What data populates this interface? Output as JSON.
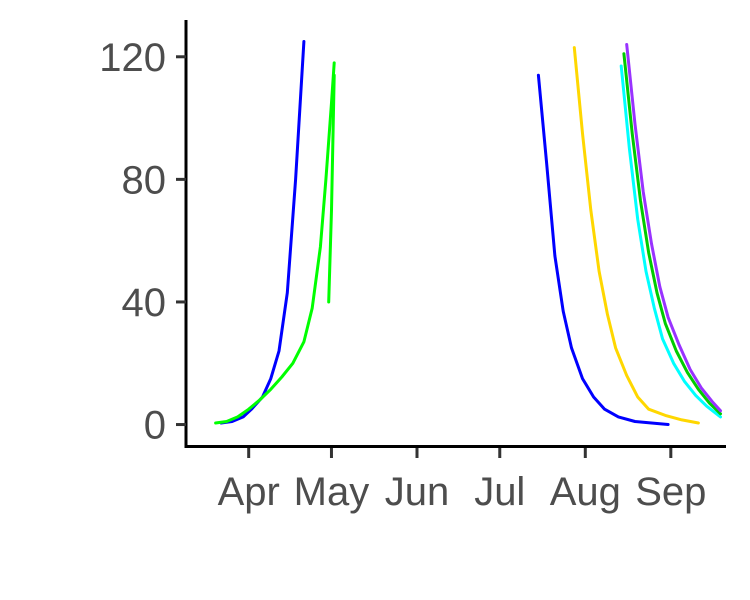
{
  "chart_data": {
    "type": "line",
    "title": "",
    "xlabel": "",
    "ylabel": "",
    "x_unit": "day of year",
    "xlim": [
      69,
      264
    ],
    "ylim": [
      -7,
      132
    ],
    "grid": false,
    "legend": "none",
    "x_ticks": [
      {
        "day": 91,
        "label": "Apr"
      },
      {
        "day": 121,
        "label": "May"
      },
      {
        "day": 152,
        "label": "Jun"
      },
      {
        "day": 182,
        "label": "Jul"
      },
      {
        "day": 213,
        "label": "Aug"
      },
      {
        "day": 244,
        "label": "Sep"
      }
    ],
    "y_ticks": [
      0,
      40,
      80,
      120
    ],
    "series": [
      {
        "color": "#0000ff",
        "points": [
          [
            81,
            0.5
          ],
          [
            85,
            1.0
          ],
          [
            89,
            2.5
          ],
          [
            92,
            5.0
          ],
          [
            96,
            9.0
          ],
          [
            99,
            15.0
          ],
          [
            102,
            24.0
          ],
          [
            105,
            43.0
          ],
          [
            108,
            80.0
          ],
          [
            111,
            125.0
          ]
        ]
      },
      {
        "color": "#00ff00",
        "points": [
          [
            79,
            0.5
          ],
          [
            83,
            1.0
          ],
          [
            87,
            2.5
          ],
          [
            91,
            5.0
          ],
          [
            95,
            8.0
          ],
          [
            99,
            11.5
          ],
          [
            103,
            15.5
          ],
          [
            107,
            20.0
          ],
          [
            111,
            27.0
          ],
          [
            114,
            38.0
          ],
          [
            117,
            58.0
          ],
          [
            119,
            80.0
          ],
          [
            121,
            105.0
          ],
          [
            122,
            118.0
          ]
        ]
      },
      {
        "color": "#00ff00",
        "points": [
          [
            120,
            40.0
          ],
          [
            121,
            70.0
          ],
          [
            122,
            114.0
          ]
        ]
      },
      {
        "color": "#0000ff",
        "points": [
          [
            196,
            114.0
          ],
          [
            199,
            85.0
          ],
          [
            202,
            55.0
          ],
          [
            205,
            37.0
          ],
          [
            208,
            25.0
          ],
          [
            212,
            15.0
          ],
          [
            216,
            9.0
          ],
          [
            220,
            5.0
          ],
          [
            225,
            2.5
          ],
          [
            231,
            1.0
          ],
          [
            237,
            0.5
          ],
          [
            243,
            0.0
          ]
        ]
      },
      {
        "color": "#ffd700",
        "points": [
          [
            209,
            123.0
          ],
          [
            212,
            95.0
          ],
          [
            215,
            70.0
          ],
          [
            218,
            50.0
          ],
          [
            221,
            36.0
          ],
          [
            224,
            25.0
          ],
          [
            228,
            16.0
          ],
          [
            232,
            9.0
          ],
          [
            236,
            5.0
          ],
          [
            242,
            3.0
          ],
          [
            248,
            1.5
          ],
          [
            254,
            0.5
          ]
        ]
      },
      {
        "color": "#00ffff",
        "points": [
          [
            226,
            117.0
          ],
          [
            229,
            90.0
          ],
          [
            232,
            67.0
          ],
          [
            235,
            50.0
          ],
          [
            238,
            38.0
          ],
          [
            241,
            28.0
          ],
          [
            245,
            20.0
          ],
          [
            249,
            14.0
          ],
          [
            253,
            9.5
          ],
          [
            257,
            6.0
          ],
          [
            262,
            2.5
          ]
        ]
      },
      {
        "color": "#00cc00",
        "points": [
          [
            227,
            121.0
          ],
          [
            230,
            95.0
          ],
          [
            233,
            73.0
          ],
          [
            236,
            56.0
          ],
          [
            239,
            43.0
          ],
          [
            242,
            33.0
          ],
          [
            246,
            24.0
          ],
          [
            250,
            17.0
          ],
          [
            254,
            11.5
          ],
          [
            258,
            7.0
          ],
          [
            262,
            3.5
          ]
        ]
      },
      {
        "color": "#9933ff",
        "points": [
          [
            228,
            124.0
          ],
          [
            231,
            98.0
          ],
          [
            234,
            76.0
          ],
          [
            237,
            59.0
          ],
          [
            240,
            45.0
          ],
          [
            243,
            35.0
          ],
          [
            247,
            26.0
          ],
          [
            251,
            18.0
          ],
          [
            255,
            12.0
          ],
          [
            259,
            7.5
          ],
          [
            262,
            4.5
          ]
        ]
      }
    ]
  }
}
